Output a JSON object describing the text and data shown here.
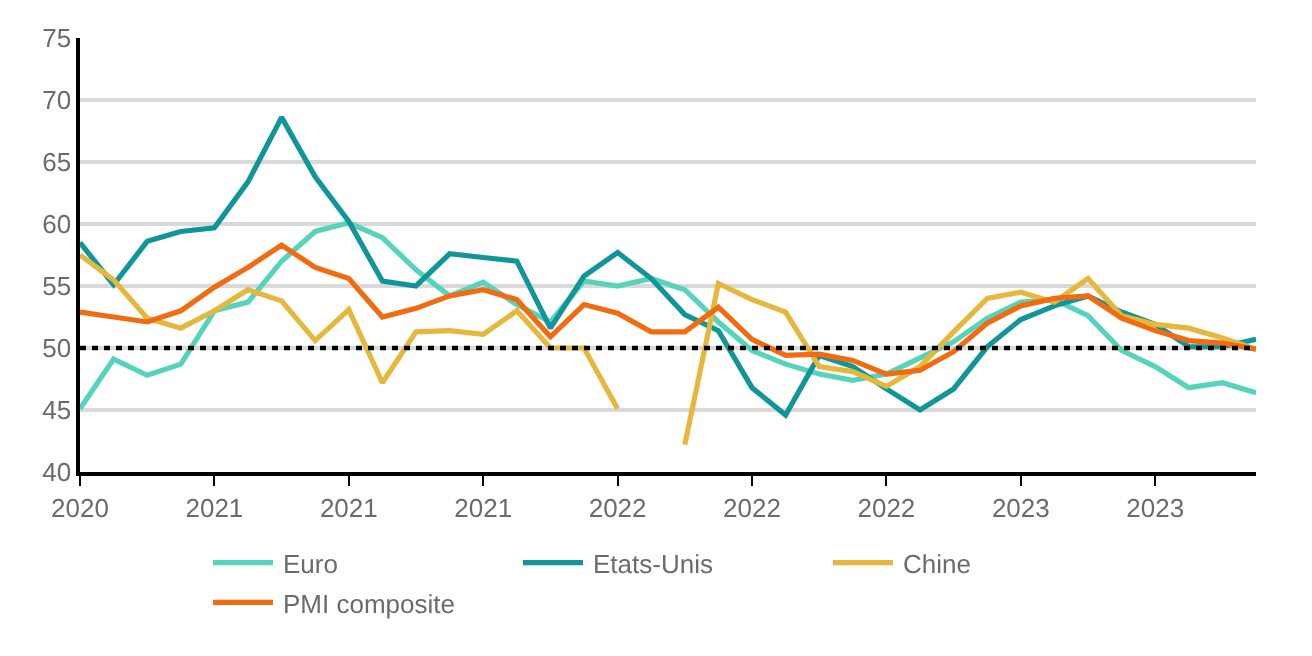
{
  "chart_data": {
    "type": "line",
    "categories": [
      "2020",
      null,
      null,
      null,
      "2021",
      null,
      null,
      null,
      "2021",
      null,
      null,
      null,
      "2021",
      null,
      null,
      null,
      "2022",
      null,
      null,
      null,
      "2022",
      null,
      null,
      null,
      "2022",
      null,
      null,
      null,
      "2023",
      null,
      null,
      null,
      "2023",
      null,
      null,
      null
    ],
    "series": [
      {
        "name": "Euro",
        "color": "#55d4bb",
        "values": [
          45.1,
          49.1,
          47.8,
          48.7,
          53,
          53.7,
          57,
          59.4,
          60.1,
          58.9,
          56.3,
          54.2,
          55.3,
          53.5,
          52.1,
          55.4,
          55,
          55.6,
          54.7,
          52.1,
          49.8,
          48.7,
          47.9,
          47.4,
          47.9,
          49.2,
          50.5,
          52.4,
          53.7,
          53.9,
          52.6,
          49.8,
          48.5,
          46.8,
          47.2,
          46.4
        ]
      },
      {
        "name": "Etats-Unis",
        "color": "#10959a",
        "values": [
          58.5,
          55.1,
          58.6,
          59.4,
          59.7,
          63.4,
          68.6,
          63.8,
          60.2,
          55.4,
          55,
          57.6,
          57.3,
          57,
          51.6,
          55.8,
          57.7,
          55.6,
          52.7,
          51.4,
          46.8,
          44.6,
          49.4,
          48.5,
          46.7,
          45,
          46.7,
          50.1,
          52.3,
          53.4,
          54.2,
          52.9,
          51.9,
          50.1,
          50.1,
          50.7
        ]
      },
      {
        "name": "Chine",
        "color": "#e5b83c",
        "values": [
          57.5,
          55.5,
          52.4,
          51.6,
          53,
          54.7,
          53.8,
          50.6,
          53.1,
          47.2,
          51.3,
          51.4,
          51.1,
          53,
          50,
          50,
          45.1,
          null,
          42.2,
          55.2,
          53.9,
          52.9,
          48.5,
          48.1,
          46.9,
          48.5,
          51.3,
          54,
          54.5,
          53.7,
          55.6,
          52.6,
          51.9,
          51.6,
          50.8,
          49.9
        ]
      },
      {
        "name": "PMI composite",
        "color": "#f26b10",
        "values": [
          52.9,
          52.5,
          52.1,
          53,
          54.9,
          56.5,
          58.3,
          56.5,
          55.6,
          52.5,
          53.2,
          54.2,
          54.7,
          53.9,
          50.9,
          53.5,
          52.8,
          51.3,
          51.3,
          53.3,
          50.7,
          49.4,
          49.5,
          49,
          47.9,
          48.2,
          49.7,
          52,
          53.4,
          54,
          54.2,
          52.4,
          51.4,
          50.6,
          50.4,
          49.9
        ]
      }
    ],
    "ylim": [
      40,
      75
    ],
    "yticks": [
      40,
      45,
      50,
      55,
      60,
      65,
      70,
      75
    ],
    "grid": "y",
    "legend": "bottom",
    "line_style": "solid",
    "marker": "none",
    "ref_lines": [
      {
        "axis": "y",
        "value": 50,
        "color": "#000000",
        "line_style": "dotted"
      }
    ]
  }
}
